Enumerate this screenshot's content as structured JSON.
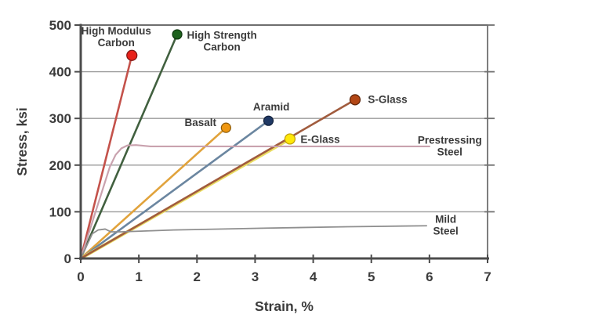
{
  "figure": {
    "background": "#ffffff",
    "text_color": "#3b3b3b",
    "axis_color": "#4c4c4c",
    "right_spine_color": "#707070",
    "grid_color": "#9b9b9b",
    "top_border_color": "#6e6e6e"
  },
  "chart_data": {
    "type": "line",
    "title": "",
    "xlabel": "Strain, %",
    "ylabel": "Stress, ksi",
    "xlim": [
      0,
      7
    ],
    "ylim": [
      0,
      500
    ],
    "xticks": [
      0,
      1,
      2,
      3,
      4,
      5,
      6,
      7
    ],
    "yticks": [
      0,
      100,
      200,
      300,
      400,
      500
    ],
    "grid": "horizontal",
    "legend": "inline-labels",
    "series": [
      {
        "name": "High Modulus Carbon",
        "color": "#c4524b",
        "width": 2.6,
        "points": [
          [
            0,
            0
          ],
          [
            0.88,
            435
          ]
        ],
        "marker": {
          "color": "#e8221a",
          "stroke": "#7a1512",
          "r": 6.5
        },
        "label": {
          "lines": [
            "High Modulus",
            "Carbon"
          ],
          "x": 0.61,
          "y": 487,
          "anchor": "middle"
        }
      },
      {
        "name": "High Strength Carbon",
        "color": "#41603f",
        "width": 2.6,
        "points": [
          [
            0,
            0
          ],
          [
            1.66,
            480
          ]
        ],
        "marker": {
          "color": "#1d611d",
          "stroke": "#0d350d",
          "r": 6
        },
        "label": {
          "lines": [
            "High Strength",
            "Carbon"
          ],
          "x": 2.43,
          "y": 478,
          "anchor": "middle"
        }
      },
      {
        "name": "Basalt",
        "color": "#e1a33c",
        "width": 2.6,
        "points": [
          [
            0,
            0
          ],
          [
            2.5,
            280
          ]
        ],
        "marker": {
          "color": "#ef9711",
          "stroke": "#8a5a0a",
          "r": 6
        },
        "label": {
          "lines": [
            "Basalt"
          ],
          "x": 2.06,
          "y": 291,
          "anchor": "middle"
        }
      },
      {
        "name": "Aramid",
        "color": "#6b86a0",
        "width": 2.6,
        "points": [
          [
            0,
            0
          ],
          [
            3.23,
            295
          ]
        ],
        "marker": {
          "color": "#1f3864",
          "stroke": "#101f3a",
          "r": 6
        },
        "label": {
          "lines": [
            "Aramid"
          ],
          "x": 3.28,
          "y": 325,
          "anchor": "middle"
        }
      },
      {
        "name": "E-Glass",
        "color": "#eadd62",
        "width": 4,
        "points": [
          [
            0,
            0
          ],
          [
            3.6,
            256
          ]
        ],
        "marker": {
          "color": "#ffe80a",
          "stroke": "#bf9c08",
          "r": 6.5
        },
        "label": {
          "lines": [
            "E-Glass"
          ],
          "x": 4.12,
          "y": 255,
          "anchor": "middle"
        }
      },
      {
        "name": "S-Glass",
        "color": "#a15c3e",
        "width": 2.6,
        "points": [
          [
            0,
            0
          ],
          [
            4.72,
            340
          ]
        ],
        "marker": {
          "color": "#b34716",
          "stroke": "#5e2408",
          "r": 6.5
        },
        "label": {
          "lines": [
            "S-Glass"
          ],
          "x": 5.28,
          "y": 341,
          "anchor": "middle"
        }
      },
      {
        "name": "Prestressing Steel",
        "color": "#c9a2ae",
        "width": 2.2,
        "points": [
          [
            0,
            0
          ],
          [
            0.5,
            196
          ],
          [
            0.6,
            222
          ],
          [
            0.7,
            236
          ],
          [
            0.8,
            242
          ],
          [
            0.95,
            243
          ],
          [
            1.2,
            240
          ],
          [
            2.0,
            240
          ],
          [
            6.0,
            240
          ]
        ],
        "marker": null,
        "label": {
          "lines": [
            "Prestressing",
            "Steel"
          ],
          "x": 6.35,
          "y": 253,
          "anchor": "middle"
        }
      },
      {
        "name": "Mild Steel",
        "color": "#8f8f8f",
        "width": 1.8,
        "points": [
          [
            0,
            0
          ],
          [
            0.2,
            53
          ],
          [
            0.3,
            61
          ],
          [
            0.42,
            63
          ],
          [
            0.52,
            57
          ],
          [
            0.7,
            57
          ],
          [
            1.6,
            61
          ],
          [
            3.2,
            65
          ],
          [
            4.6,
            68
          ],
          [
            5.95,
            70
          ]
        ],
        "marker": null,
        "label": {
          "lines": [
            "Mild",
            "Steel"
          ],
          "x": 6.28,
          "y": 84,
          "anchor": "middle"
        }
      }
    ]
  }
}
